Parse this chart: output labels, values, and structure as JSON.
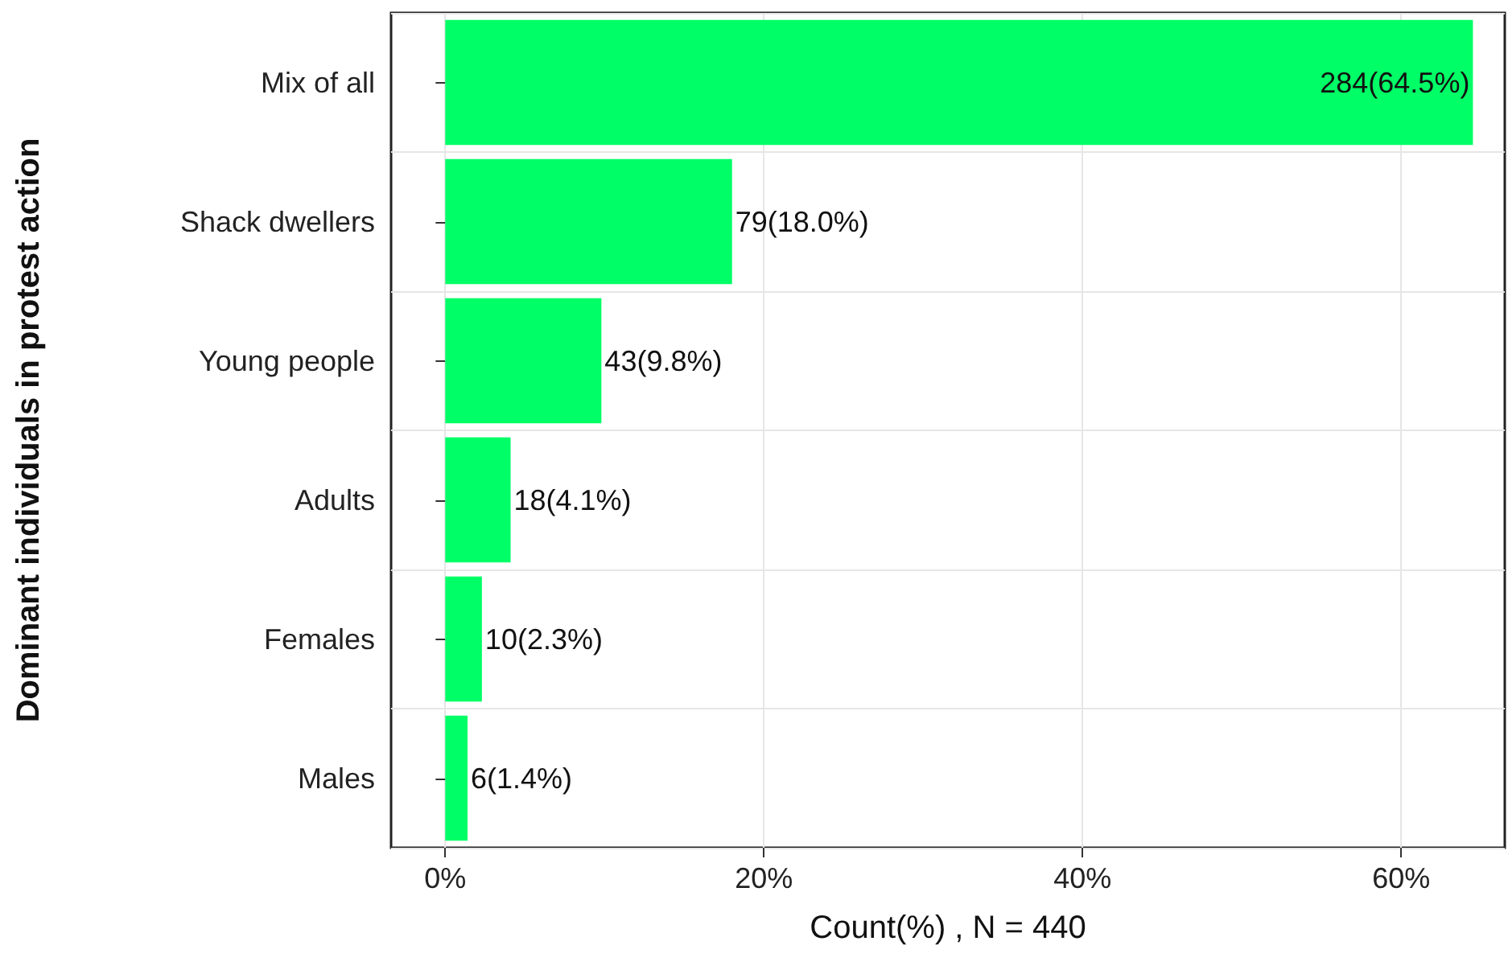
{
  "chart_data": {
    "type": "bar",
    "orientation": "horizontal",
    "categories": [
      "Mix of all",
      "Shack dwellers",
      "Young people",
      "Adults",
      "Females",
      "Males"
    ],
    "values": [
      64.5,
      18.0,
      9.8,
      4.1,
      2.3,
      1.4
    ],
    "value_labels": [
      "284(64.5%)",
      "79(18.0%)",
      "43(9.8%)",
      "18(4.1%)",
      "10(2.3%)",
      "6(1.4%)"
    ],
    "color": "#00ff66",
    "xlim": [
      -3.4,
      66.5
    ],
    "xticks": [
      {
        "value": 0,
        "label": "0%"
      },
      {
        "value": 20,
        "label": "20%"
      },
      {
        "value": 40,
        "label": "40%"
      },
      {
        "value": 60,
        "label": "60%"
      }
    ],
    "xlabel": "Count(%) , N = 440",
    "ylabel": "Dominant individuals in protest action",
    "grid": true
  }
}
